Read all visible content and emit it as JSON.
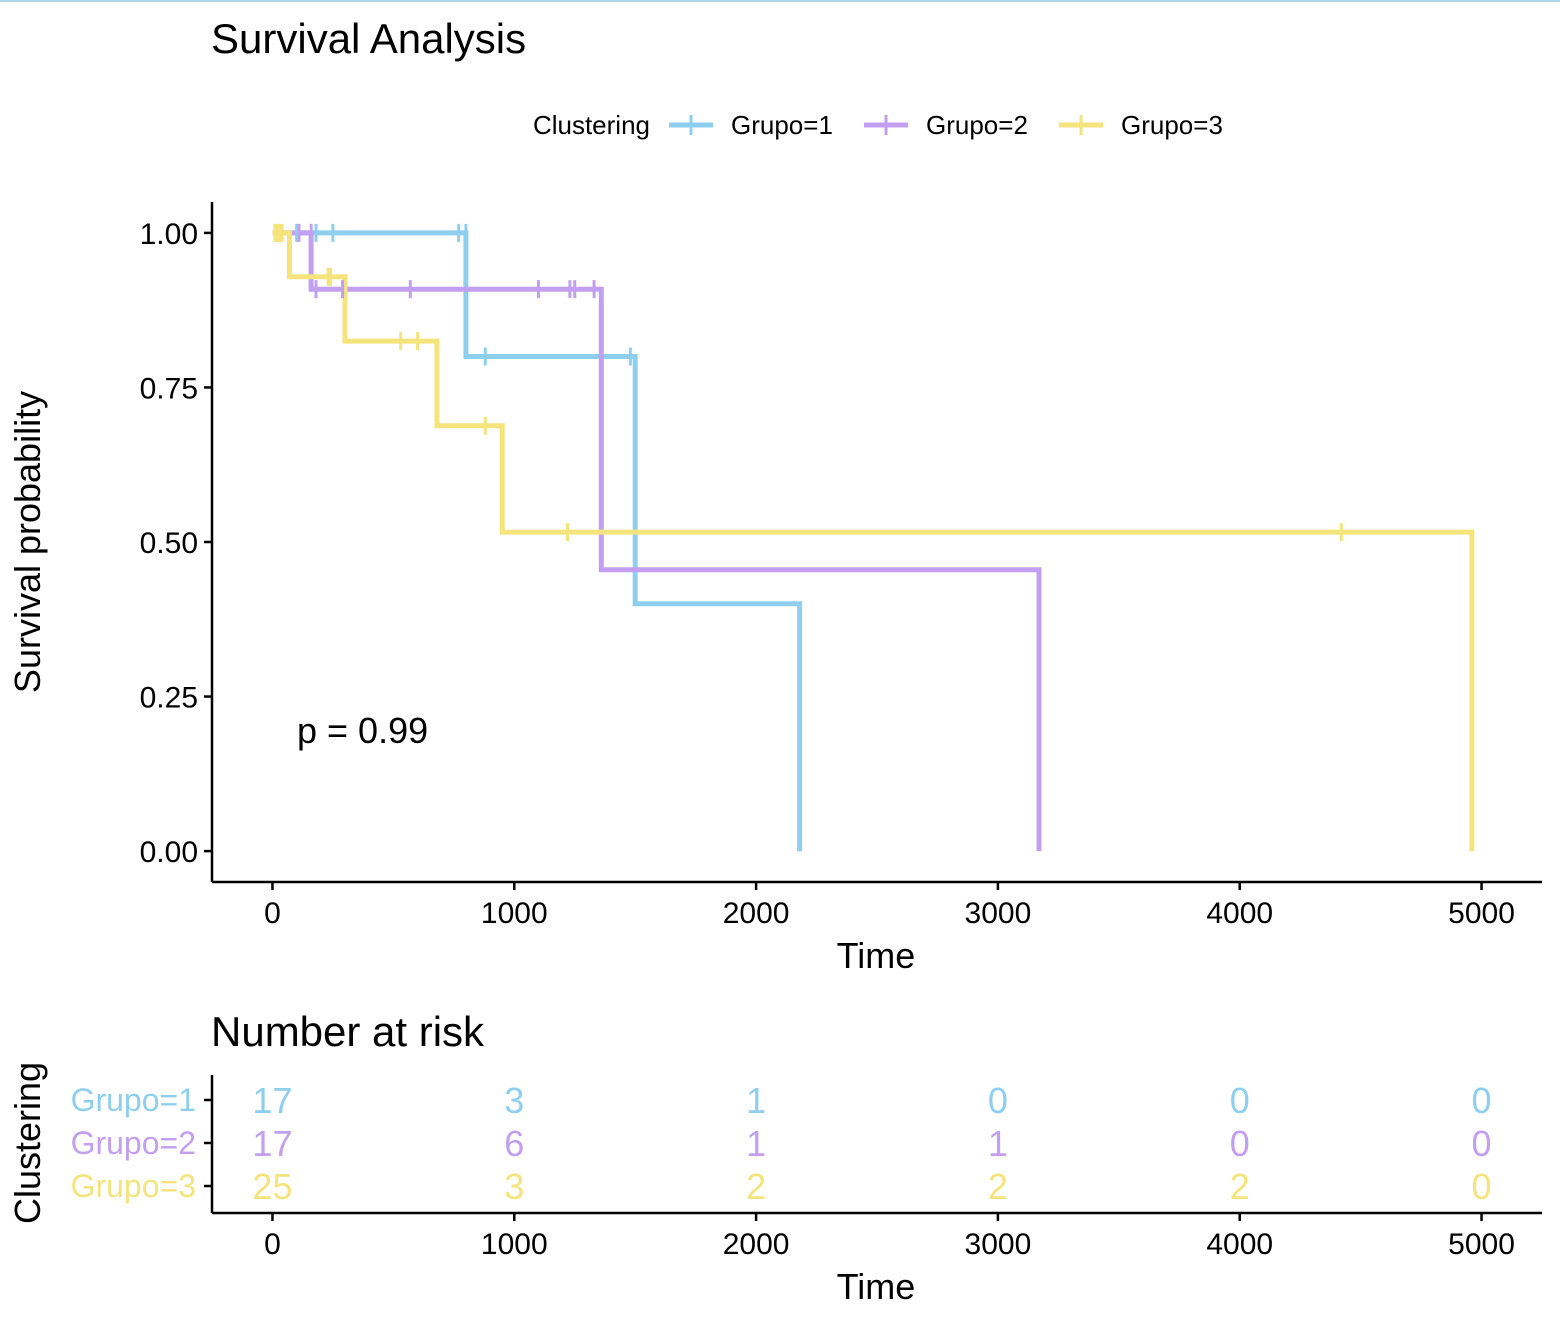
{
  "chart_data": [
    {
      "type": "line",
      "title": "Survival Analysis",
      "xlabel": "Time",
      "ylabel": "Survival probability",
      "xlim": [
        -250,
        5250
      ],
      "ylim": [
        -0.05,
        1.05
      ],
      "x_ticks": [
        "0",
        "1000",
        "2000",
        "3000",
        "4000",
        "5000"
      ],
      "x_tick_values": [
        0,
        1000,
        2000,
        3000,
        4000,
        5000
      ],
      "y_ticks": [
        "0.00",
        "0.25",
        "0.50",
        "0.75",
        "1.00"
      ],
      "y_tick_values": [
        0,
        0.25,
        0.5,
        0.75,
        1.0
      ],
      "grid": false,
      "legend": {
        "title": "Clustering",
        "position": "top"
      },
      "annotation": "p = 0.99",
      "series": [
        {
          "name": "Grupo=1",
          "color": "#8ecff0",
          "steps": [
            [
              0,
              1.0
            ],
            [
              800,
              1.0
            ],
            [
              800,
              0.8
            ],
            [
              1500,
              0.8
            ],
            [
              1500,
              0.4
            ],
            [
              2180,
              0.4
            ],
            [
              2180,
              0.0
            ]
          ],
          "censor_times": [
            100,
            180,
            250,
            770,
            800,
            880,
            1480
          ],
          "censor_values": [
            1.0,
            1.0,
            1.0,
            1.0,
            1.0,
            0.8,
            0.8
          ]
        },
        {
          "name": "Grupo=2",
          "color": "#c29ff0",
          "steps": [
            [
              0,
              1.0
            ],
            [
              160,
              1.0
            ],
            [
              160,
              0.909
            ],
            [
              1360,
              0.909
            ],
            [
              1360,
              0.455
            ],
            [
              3170,
              0.455
            ],
            [
              3170,
              0.0
            ]
          ],
          "censor_times": [
            20,
            110,
            160,
            180,
            290,
            570,
            1100,
            1230,
            1250,
            1330
          ],
          "censor_values": [
            1.0,
            1.0,
            1.0,
            0.909,
            0.909,
            0.909,
            0.909,
            0.909,
            0.909,
            0.909
          ]
        },
        {
          "name": "Grupo=3",
          "color": "#f5e47c",
          "steps": [
            [
              0,
              1.0
            ],
            [
              70,
              1.0
            ],
            [
              70,
              0.929
            ],
            [
              300,
              0.929
            ],
            [
              300,
              0.825
            ],
            [
              680,
              0.825
            ],
            [
              680,
              0.688
            ],
            [
              950,
              0.688
            ],
            [
              950,
              0.516
            ],
            [
              4960,
              0.516
            ],
            [
              4960,
              0.0
            ]
          ],
          "censor_times": [
            10,
            20,
            30,
            40,
            230,
            240,
            530,
            600,
            880,
            1220,
            4420
          ],
          "censor_values": [
            1.0,
            1.0,
            1.0,
            1.0,
            0.929,
            0.929,
            0.825,
            0.825,
            0.688,
            0.516,
            0.516
          ]
        }
      ]
    },
    {
      "type": "table",
      "title": "Number at risk",
      "xlabel": "Time",
      "ylabel": "Clustering",
      "xlim": [
        -250,
        5250
      ],
      "x_ticks": [
        "0",
        "1000",
        "2000",
        "3000",
        "4000",
        "5000"
      ],
      "x_tick_values": [
        0,
        1000,
        2000,
        3000,
        4000,
        5000
      ],
      "rows": [
        {
          "name": "Grupo=1",
          "color": "#8ecff0",
          "values": [
            "17",
            "3",
            "1",
            "0",
            "0",
            "0"
          ]
        },
        {
          "name": "Grupo=2",
          "color": "#c29ff0",
          "values": [
            "17",
            "6",
            "1",
            "1",
            "0",
            "0"
          ]
        },
        {
          "name": "Grupo=3",
          "color": "#f5e47c",
          "values": [
            "25",
            "3",
            "2",
            "2",
            "2",
            "0"
          ]
        }
      ]
    }
  ]
}
